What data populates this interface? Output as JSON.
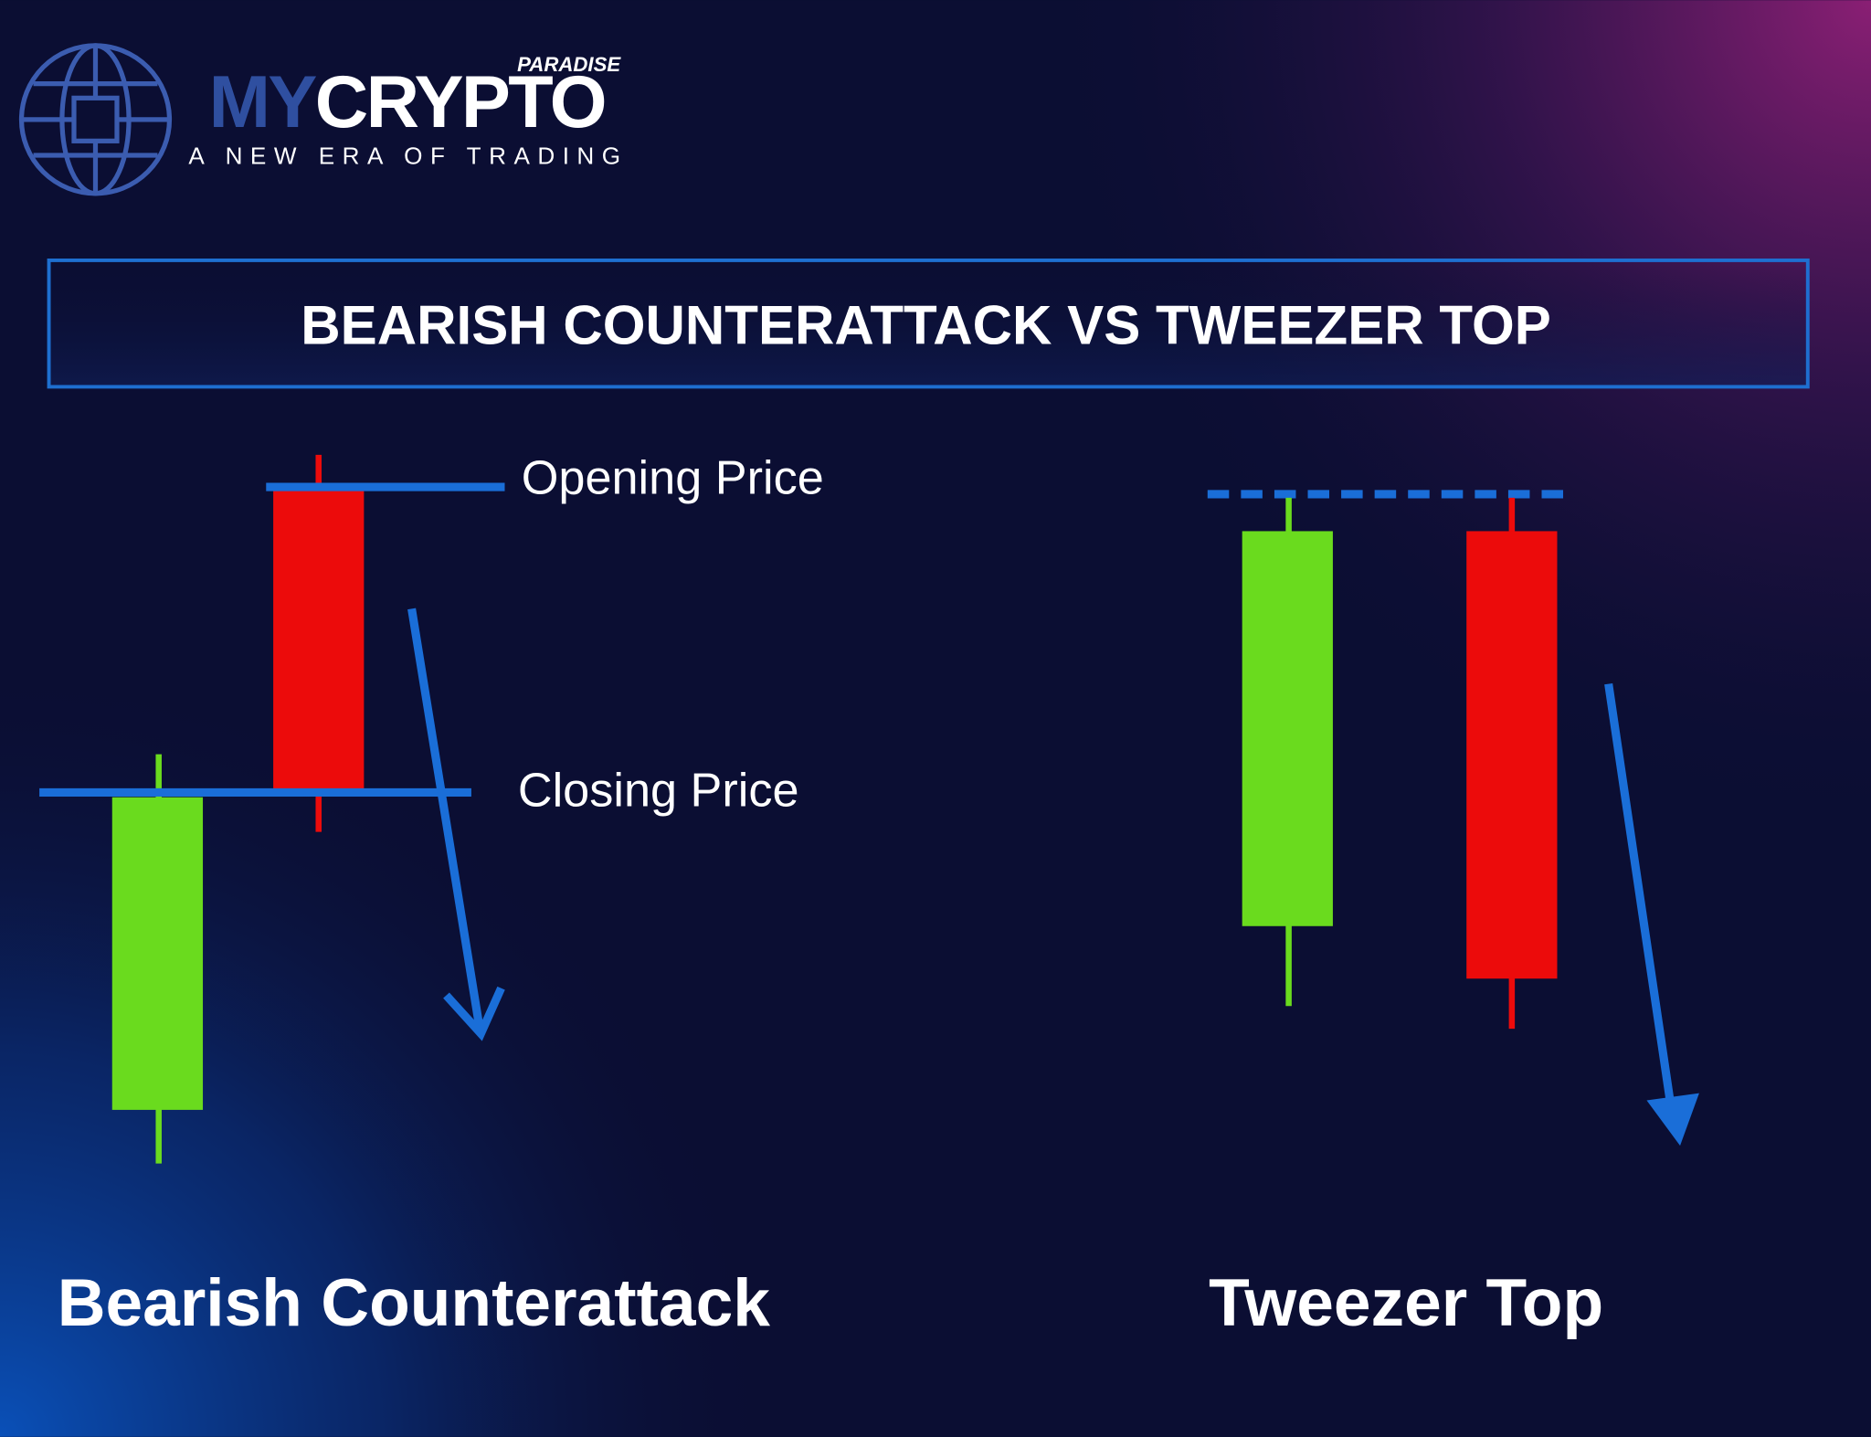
{
  "logo": {
    "brand_small": "PARADISE",
    "brand_my": "MY",
    "brand_crypto": "CRYPTO",
    "tagline": "A NEW ERA OF TRADING"
  },
  "title": "BEARISH COUNTERATTACK VS TWEEZER TOP",
  "left": {
    "opening_label": "Opening Price",
    "closing_label": "Closing Price",
    "caption": "Bearish Counterattack"
  },
  "right": {
    "caption": "Tweezer Top"
  }
}
